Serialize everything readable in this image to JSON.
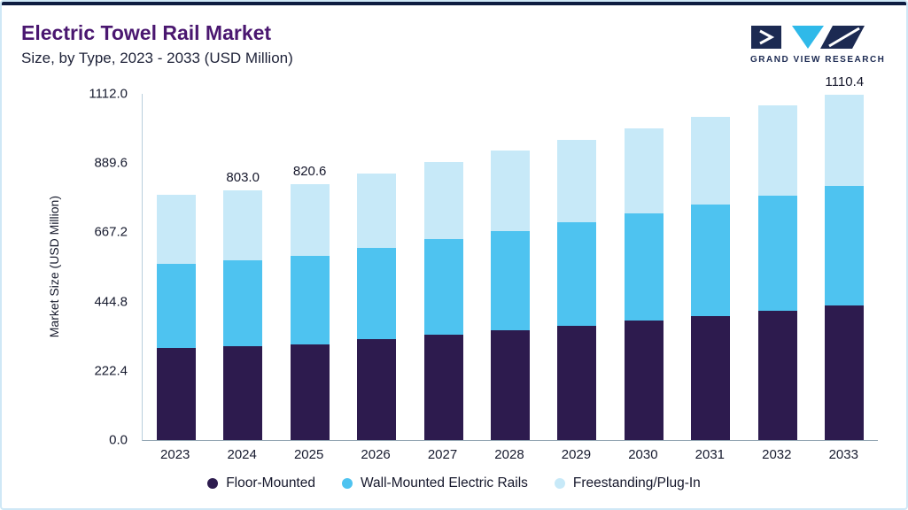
{
  "header": {
    "title": "Electric Towel Rail Market",
    "subtitle": "Size, by Type, 2023 - 2033 (USD Million)",
    "logo_text": "GRAND VIEW RESEARCH"
  },
  "colors": {
    "title": "#4A1770",
    "top_accent": "#0E1C40",
    "frame_border": "#CFE8F6",
    "brand_navy": "#1C2A52",
    "brand_cyan": "#2FB9E9"
  },
  "chart_data": {
    "type": "bar",
    "stacked": true,
    "title": "Electric Towel Rail Market Size, by Type, 2023 - 2033 (USD Million)",
    "categories": [
      "2023",
      "2024",
      "2025",
      "2026",
      "2027",
      "2028",
      "2029",
      "2030",
      "2031",
      "2032",
      "2033"
    ],
    "series": [
      {
        "name": "Floor-Mounted",
        "color": "#2D1B4E",
        "values": [
          295.0,
          301.0,
          308.5,
          323.0,
          337.5,
          352.5,
          367.5,
          383.0,
          398.5,
          415.0,
          432.0
        ]
      },
      {
        "name": "Wall-Mounted Electric Rails",
        "color": "#4EC3F0",
        "values": [
          272.0,
          277.0,
          283.0,
          295.0,
          307.0,
          319.5,
          332.0,
          344.5,
          357.5,
          371.0,
          383.0
        ]
      },
      {
        "name": "Freestanding/Plug-In",
        "color": "#C7E9F8",
        "values": [
          222.0,
          225.0,
          229.1,
          238.8,
          248.5,
          257.2,
          266.0,
          274.2,
          281.9,
          288.2,
          295.4
        ]
      }
    ],
    "totals": [
      789.0,
      803.0,
      820.6,
      856.8,
      893.0,
      929.2,
      965.5,
      1001.7,
      1037.9,
      1074.2,
      1110.4
    ],
    "bar_labels": [
      "",
      "803.0",
      "820.6",
      "",
      "",
      "",
      "",
      "",
      "",
      "",
      "1110.4"
    ],
    "ylabel": "Market Size (USD Million)",
    "xlabel": "",
    "yticks": [
      0.0,
      222.4,
      444.8,
      667.2,
      889.6,
      1112.0
    ],
    "ylim": [
      0,
      1112.0
    ],
    "grid": false,
    "legend_position": "bottom"
  }
}
